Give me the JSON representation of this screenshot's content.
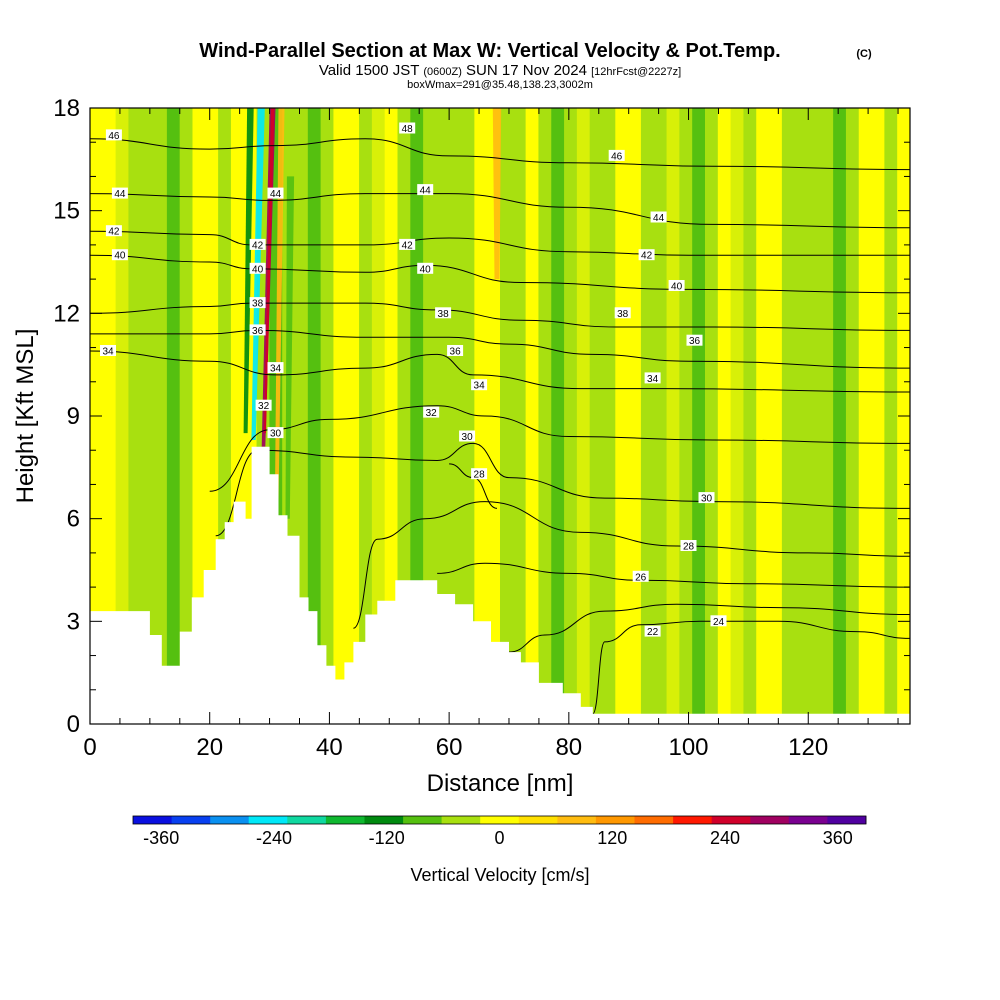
{
  "title": {
    "main": "Wind-Parallel Section at Max W: Vertical Velocity & Pot.Temp.",
    "copyright": "(C)",
    "valid_prefix": "Valid 1500 JST",
    "valid_utc": "(0600Z)",
    "valid_date": "SUN 17 Nov 2024",
    "forecast": "[12hrFcst@2227z]",
    "box_info": "boxWmax=291@35.48,138.23,3002m"
  },
  "chart_data": {
    "type": "heatmap",
    "xlabel": "Distance [nm]",
    "ylabel": "Height [Kft MSL]",
    "xlim": [
      0,
      137
    ],
    "ylim": [
      0,
      18
    ],
    "x_ticks": [
      "0",
      "20",
      "40",
      "60",
      "80",
      "100",
      "120"
    ],
    "y_ticks": [
      "0",
      "3",
      "6",
      "9",
      "12",
      "15",
      "18"
    ],
    "colorbar": {
      "label": "Vertical Velocity [cm/s]",
      "range": [
        -390,
        390
      ],
      "tick_labels": [
        "-360",
        "-240",
        "-120",
        "0",
        "120",
        "240",
        "360"
      ],
      "colors": [
        "#0a10e0",
        "#0840f0",
        "#0a90f0",
        "#00e8f8",
        "#10d8a0",
        "#10b830",
        "#008a10",
        "#55c010",
        "#a8e010",
        "#ffff00",
        "#ffe000",
        "#ffbc10",
        "#ff9800",
        "#ff6c00",
        "#ff1800",
        "#d0002a",
        "#a00060",
        "#7a0090",
        "#5000a0"
      ]
    },
    "terrain_kft": [
      [
        0,
        3.3
      ],
      [
        8,
        3.3
      ],
      [
        10,
        2.6
      ],
      [
        12,
        1.7
      ],
      [
        13.5,
        1.7
      ],
      [
        15,
        2.7
      ],
      [
        17,
        3.7
      ],
      [
        19,
        4.5
      ],
      [
        21,
        5.4
      ],
      [
        22.5,
        5.9
      ],
      [
        24,
        6.5
      ],
      [
        26,
        6.0
      ],
      [
        27,
        8.1
      ],
      [
        29.5,
        8.1
      ],
      [
        30,
        7.3
      ],
      [
        31.5,
        6.1
      ],
      [
        33,
        5.5
      ],
      [
        35,
        3.7
      ],
      [
        36.5,
        3.3
      ],
      [
        38,
        2.3
      ],
      [
        39.5,
        1.7
      ],
      [
        41,
        1.3
      ],
      [
        42.5,
        1.8
      ],
      [
        44,
        2.4
      ],
      [
        46,
        3.2
      ],
      [
        48,
        3.6
      ],
      [
        51,
        4.2
      ],
      [
        56,
        4.2
      ],
      [
        58,
        3.8
      ],
      [
        61,
        3.5
      ],
      [
        64,
        3.0
      ],
      [
        67,
        2.4
      ],
      [
        70,
        2.1
      ],
      [
        72,
        1.8
      ],
      [
        75,
        1.2
      ],
      [
        79,
        0.9
      ],
      [
        82,
        0.5
      ],
      [
        84,
        0.3
      ],
      [
        137,
        0.3
      ]
    ],
    "velocity_features": [
      {
        "x": 30.5,
        "ytop": 18,
        "ybot": 8.1,
        "slope": -0.95,
        "width": 1.0,
        "value": 291
      },
      {
        "x": 28.6,
        "ytop": 18,
        "ybot": 8.3,
        "slope": -0.8,
        "width": 1.2,
        "value": -230
      },
      {
        "x": 32.0,
        "ytop": 18,
        "ybot": 6.5,
        "slope": -0.5,
        "width": 1.0,
        "value": 90
      },
      {
        "x": 26.8,
        "ytop": 18,
        "ybot": 8.5,
        "slope": -0.5,
        "width": 1.1,
        "value": -110
      },
      {
        "x": 68.0,
        "ytop": 18,
        "ybot": 13.0,
        "slope": 0.0,
        "width": 1.4,
        "value": 95
      },
      {
        "x": 33.5,
        "ytop": 16,
        "ybot": 6.0,
        "slope": -0.3,
        "width": 1.2,
        "value": -70
      }
    ],
    "theta_contours": [
      {
        "label": "22",
        "points": [
          [
            84,
            0.3
          ],
          [
            86,
            2.4
          ],
          [
            92,
            2.9
          ],
          [
            102,
            3.0
          ],
          [
            115,
            3.0
          ],
          [
            128,
            2.7
          ],
          [
            137,
            2.5
          ]
        ],
        "label_at": [
          94,
          2.7
        ]
      },
      {
        "label": "24",
        "points": [
          [
            70,
            2.1
          ],
          [
            76,
            2.6
          ],
          [
            86,
            3.3
          ],
          [
            98,
            3.5
          ],
          [
            115,
            3.4
          ],
          [
            137,
            3.2
          ]
        ],
        "label_at": [
          105,
          3.0
        ]
      },
      {
        "label": "26",
        "points": [
          [
            58,
            4.4
          ],
          [
            66,
            4.7
          ],
          [
            80,
            4.4
          ],
          [
            92,
            4.2
          ],
          [
            110,
            4.1
          ],
          [
            137,
            4.0
          ]
        ],
        "label_at": [
          92,
          4.3
        ]
      },
      {
        "label": "28",
        "points": [
          [
            44,
            2.8
          ],
          [
            48,
            5.4
          ],
          [
            56,
            6.0
          ],
          [
            66,
            6.5
          ],
          [
            82,
            5.6
          ],
          [
            98,
            5.2
          ],
          [
            120,
            5.0
          ],
          [
            137,
            4.9
          ]
        ],
        "label_at": [
          100,
          5.2
        ]
      },
      {
        "label": "28",
        "points": [
          [
            60,
            7.6
          ],
          [
            64,
            7.2
          ],
          [
            68,
            6.3
          ]
        ],
        "label_at": [
          65,
          7.3
        ]
      },
      {
        "label": "30",
        "points": [
          [
            21,
            5.5
          ],
          [
            28,
            8.0
          ],
          [
            44,
            7.8
          ],
          [
            58,
            7.7
          ],
          [
            64,
            8.2
          ],
          [
            70,
            7.2
          ],
          [
            86,
            6.6
          ],
          [
            104,
            6.5
          ],
          [
            137,
            6.3
          ]
        ],
        "label_at": [
          103,
          6.6
        ]
      },
      {
        "label": "32",
        "points": [
          [
            20,
            6.8
          ],
          [
            30,
            8.6
          ],
          [
            40,
            8.9
          ],
          [
            58,
            9.3
          ],
          [
            66,
            9.0
          ],
          [
            80,
            8.4
          ],
          [
            104,
            8.3
          ],
          [
            137,
            8.2
          ]
        ],
        "label_at": [
          57,
          9.1
        ]
      },
      {
        "label": "34",
        "points": [
          [
            0,
            10.9
          ],
          [
            20,
            10.6
          ],
          [
            31,
            10.2
          ],
          [
            46,
            10.4
          ],
          [
            58,
            10.8
          ],
          [
            64,
            10.2
          ],
          [
            82,
            9.8
          ],
          [
            96,
            9.8
          ],
          [
            137,
            9.7
          ]
        ],
        "label_at": [
          94,
          10.1
        ]
      },
      {
        "label": "36",
        "points": [
          [
            0,
            11.4
          ],
          [
            20,
            11.4
          ],
          [
            28,
            11.5
          ],
          [
            46,
            11.3
          ],
          [
            60,
            11.3
          ],
          [
            70,
            11.1
          ],
          [
            84,
            10.8
          ],
          [
            100,
            10.6
          ],
          [
            137,
            10.4
          ]
        ],
        "label_at": [
          101,
          11.2
        ]
      },
      {
        "label": "38",
        "points": [
          [
            0,
            12.0
          ],
          [
            20,
            12.2
          ],
          [
            27,
            12.3
          ],
          [
            46,
            12.3
          ],
          [
            58,
            12.1
          ],
          [
            72,
            11.8
          ],
          [
            88,
            11.6
          ],
          [
            104,
            11.6
          ],
          [
            137,
            11.5
          ]
        ],
        "label_at": [
          89,
          12.0
        ]
      },
      {
        "label": "40",
        "points": [
          [
            0,
            13.7
          ],
          [
            20,
            13.5
          ],
          [
            27,
            13.3
          ],
          [
            46,
            13.2
          ],
          [
            56,
            13.4
          ],
          [
            72,
            12.9
          ],
          [
            100,
            12.7
          ],
          [
            137,
            12.6
          ]
        ],
        "label_at": [
          98,
          12.8
        ]
      },
      {
        "label": "42",
        "points": [
          [
            0,
            14.4
          ],
          [
            20,
            14.3
          ],
          [
            27,
            14.0
          ],
          [
            46,
            14.0
          ],
          [
            60,
            14.2
          ],
          [
            80,
            13.8
          ],
          [
            100,
            13.7
          ],
          [
            137,
            13.7
          ]
        ],
        "label_at": [
          93,
          13.7
        ]
      },
      {
        "label": "44",
        "points": [
          [
            0,
            15.5
          ],
          [
            20,
            15.4
          ],
          [
            30,
            15.3
          ],
          [
            46,
            15.5
          ],
          [
            60,
            15.5
          ],
          [
            80,
            15.1
          ],
          [
            104,
            14.6
          ],
          [
            137,
            14.5
          ]
        ],
        "label_at": [
          95,
          14.8
        ]
      },
      {
        "label": "46",
        "points": [
          [
            0,
            17.1
          ],
          [
            20,
            16.8
          ],
          [
            31,
            16.9
          ],
          [
            46,
            17.1
          ],
          [
            60,
            16.6
          ],
          [
            80,
            16.4
          ],
          [
            104,
            16.3
          ],
          [
            137,
            16.2
          ]
        ],
        "label_at": [
          88,
          16.6
        ]
      }
    ],
    "contour_labels_extra": [
      {
        "label": "46",
        "at": [
          4,
          17.2
        ]
      },
      {
        "label": "44",
        "at": [
          5,
          15.5
        ]
      },
      {
        "label": "42",
        "at": [
          4,
          14.4
        ]
      },
      {
        "label": "40",
        "at": [
          5,
          13.7
        ]
      },
      {
        "label": "34",
        "at": [
          3,
          10.9
        ]
      },
      {
        "label": "48",
        "at": [
          53,
          17.4
        ]
      },
      {
        "label": "44",
        "at": [
          56,
          15.6
        ]
      },
      {
        "label": "42",
        "at": [
          53,
          14.0
        ]
      },
      {
        "label": "40",
        "at": [
          56,
          13.3
        ]
      },
      {
        "label": "38",
        "at": [
          59,
          12.0
        ]
      },
      {
        "label": "36",
        "at": [
          61,
          10.9
        ]
      },
      {
        "label": "34",
        "at": [
          65,
          9.9
        ]
      },
      {
        "label": "30",
        "at": [
          63,
          8.4
        ]
      },
      {
        "label": "44",
        "at": [
          31,
          15.5
        ]
      },
      {
        "label": "42",
        "at": [
          28,
          14.0
        ]
      },
      {
        "label": "40",
        "at": [
          28,
          13.3
        ]
      },
      {
        "label": "38",
        "at": [
          28,
          12.3
        ]
      },
      {
        "label": "36",
        "at": [
          28,
          11.5
        ]
      },
      {
        "label": "34",
        "at": [
          31,
          10.4
        ]
      },
      {
        "label": "32",
        "at": [
          29,
          9.3
        ]
      },
      {
        "label": "30",
        "at": [
          31,
          8.5
        ]
      }
    ]
  }
}
